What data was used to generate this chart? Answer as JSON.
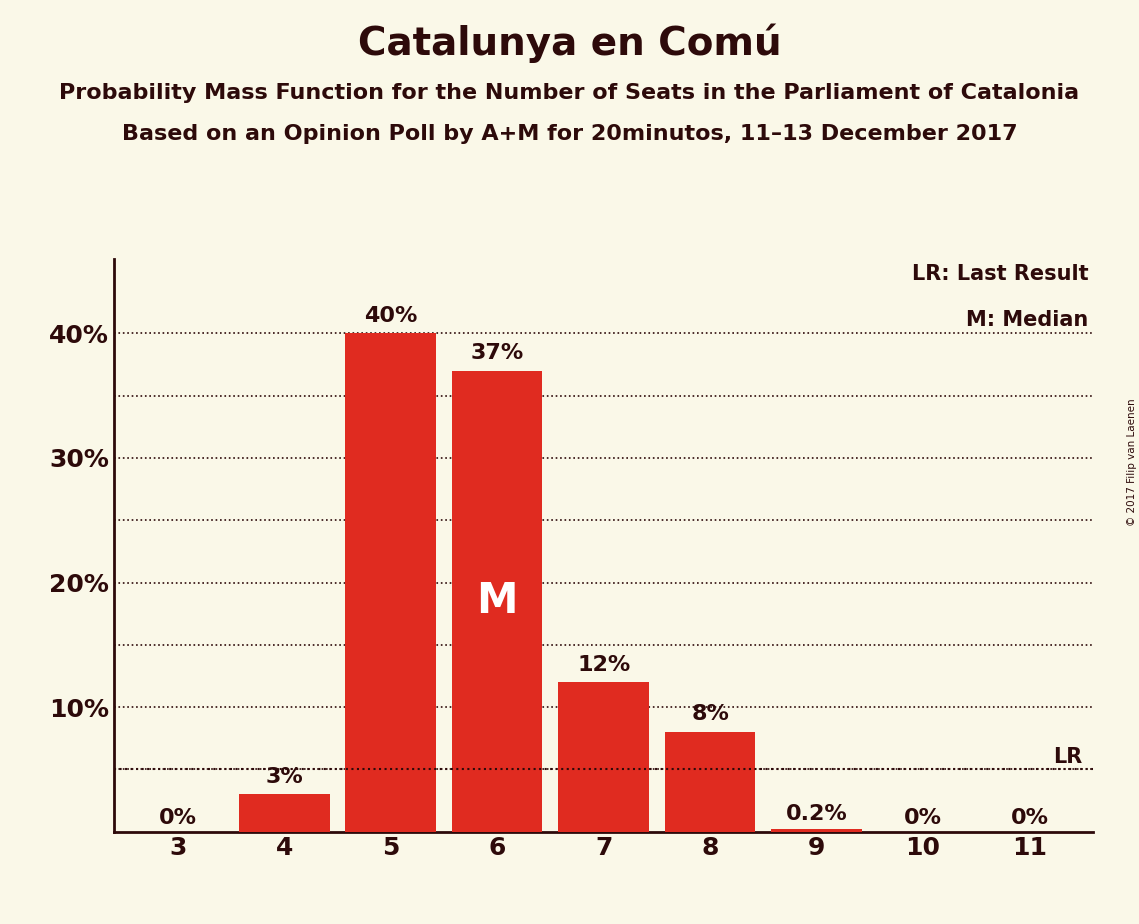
{
  "title": "Catalunya en Comú",
  "subtitle1": "Probability Mass Function for the Number of Seats in the Parliament of Catalonia",
  "subtitle2": "Based on an Opinion Poll by A+M for 20minutos, 11–13 December 2017",
  "copyright": "© 2017 Filip van Laenen",
  "categories": [
    3,
    4,
    5,
    6,
    7,
    8,
    9,
    10,
    11
  ],
  "values": [
    0.0,
    3.0,
    40.0,
    37.0,
    12.0,
    8.0,
    0.2,
    0.0,
    0.0
  ],
  "bar_color": "#e02b20",
  "background_color": "#faf8e8",
  "text_color": "#2d0a0a",
  "bar_labels": [
    "0%",
    "3%",
    "40%",
    "37%",
    "12%",
    "8%",
    "0.2%",
    "0%",
    "0%"
  ],
  "median_bar_index": 3,
  "median_label": "M",
  "lr_value": 5.0,
  "lr_label": "LR",
  "lr_seat_index": 8,
  "legend_lr": "LR: Last Result",
  "legend_m": "M: Median",
  "ylim": [
    0,
    46
  ],
  "yticks": [
    10,
    20,
    30,
    40
  ],
  "ytick_labels": [
    "10%",
    "20%",
    "30%",
    "40%"
  ],
  "grid_dotted_at": [
    5,
    10,
    15,
    20,
    25,
    30,
    35,
    40
  ],
  "grid_color": "#2d0a0a",
  "title_fontsize": 28,
  "subtitle_fontsize": 16,
  "bar_label_fontsize": 16,
  "axis_tick_fontsize": 18,
  "legend_fontsize": 15,
  "median_label_fontsize": 30
}
